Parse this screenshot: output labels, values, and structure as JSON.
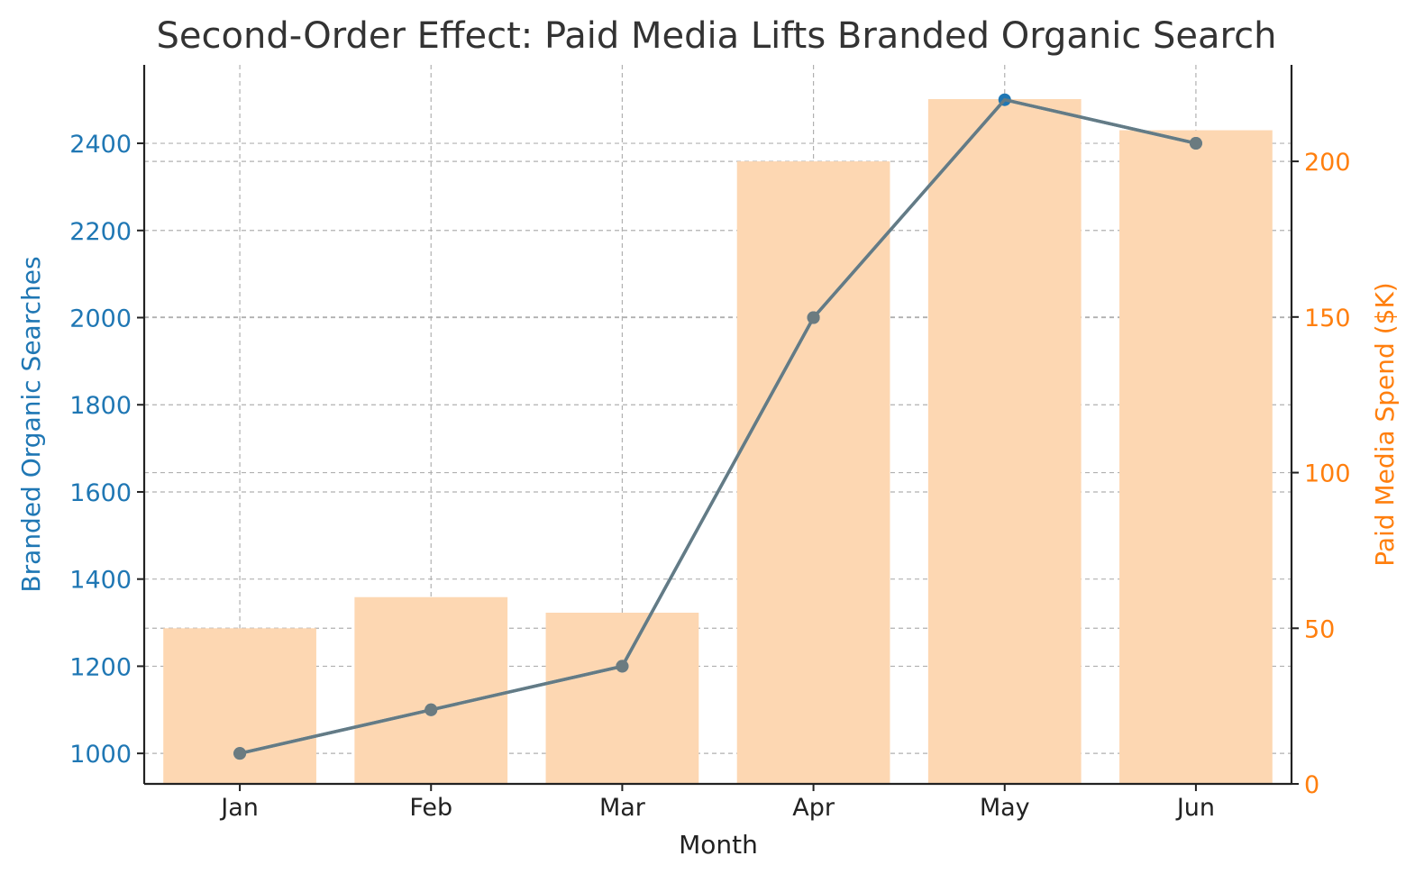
{
  "chart_data": {
    "type": "bar+line",
    "title": "Second-Order Effect: Paid Media Lifts Branded Organic Search",
    "xlabel": "Month",
    "categories": [
      "Jan",
      "Feb",
      "Mar",
      "Apr",
      "May",
      "Jun"
    ],
    "series": [
      {
        "name": "Paid Media Spend ($K)",
        "type": "bar",
        "axis": "right",
        "color": "#fdd7b2",
        "values": [
          50,
          60,
          55,
          200,
          220,
          210
        ]
      },
      {
        "name": "Branded Organic Searches",
        "type": "line",
        "axis": "left",
        "color": "#1f77b4",
        "overlay_color": "#6b7b80",
        "values": [
          1000,
          1100,
          1200,
          2000,
          2500,
          2400
        ]
      }
    ],
    "left_axis": {
      "label": "Branded Organic Searches",
      "color": "#1f77b4",
      "ylim": [
        930,
        2580
      ],
      "ticks": [
        1000,
        1200,
        1400,
        1600,
        1800,
        2000,
        2200,
        2400
      ]
    },
    "right_axis": {
      "label": "Paid Media Spend ($K)",
      "color": "#ff7f0e",
      "ylim": [
        0,
        231
      ],
      "ticks": [
        0,
        50,
        100,
        150,
        200
      ]
    },
    "grid": true
  }
}
